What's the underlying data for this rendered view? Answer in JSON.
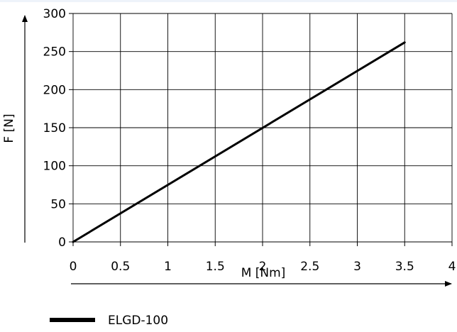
{
  "chart_data": {
    "type": "line",
    "title": "",
    "xlabel": "M [Nm]",
    "ylabel": "F [N]",
    "xlim": [
      0,
      4
    ],
    "ylim": [
      0,
      300
    ],
    "x_ticks": [
      "0",
      "0.5",
      "1",
      "1.5",
      "2",
      "2.5",
      "3",
      "3.5",
      "4"
    ],
    "y_ticks": [
      "0",
      "50",
      "100",
      "150",
      "200",
      "250",
      "300"
    ],
    "x_tick_values": [
      0,
      0.5,
      1,
      1.5,
      2,
      2.5,
      3,
      3.5,
      4
    ],
    "y_tick_values": [
      0,
      50,
      100,
      150,
      200,
      250,
      300
    ],
    "grid": true,
    "legend_position": "bottom-left",
    "series": [
      {
        "name": "ELGD-100",
        "color": "#000000",
        "x": [
          0,
          3.5
        ],
        "y": [
          0,
          262
        ]
      }
    ]
  }
}
